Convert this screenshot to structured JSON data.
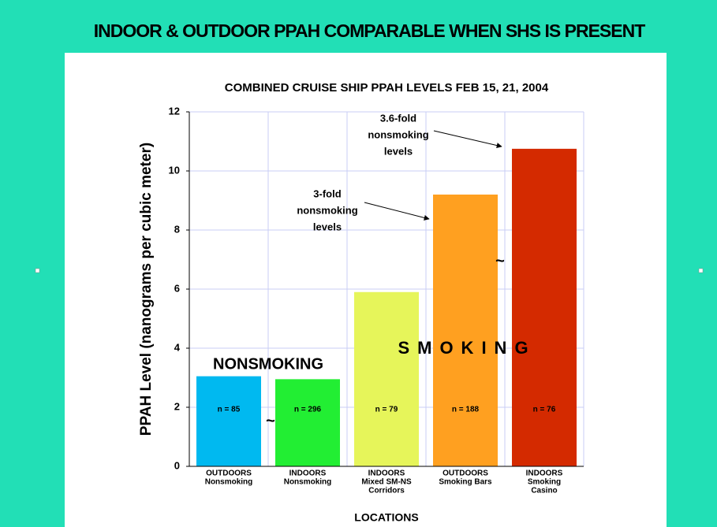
{
  "slide_title": "INDOOR & OUTDOOR PPAH COMPARABLE WHEN SHS IS PRESENT",
  "chart_data": {
    "type": "bar",
    "title": "COMBINED CRUISE SHIP PPAH LEVELS FEB 15, 21, 2004",
    "x_label": "LOCATIONS",
    "y_label": "PPAH Level (nanograms per cubic meter)",
    "categories": [
      [
        "OUTDOORS",
        "Nonsmoking"
      ],
      [
        "INDOORS",
        "Nonsmoking"
      ],
      [
        "INDOORS",
        "Mixed SM-NS",
        "Corridors"
      ],
      [
        "OUTDOORS",
        "Smoking Bars"
      ],
      [
        "INDOORS",
        "Smoking",
        "Casino"
      ]
    ],
    "values": [
      3.05,
      2.95,
      5.9,
      9.2,
      10.75
    ],
    "colors": [
      "#00b9f0",
      "#22ee33",
      "#e6f55a",
      "#ffa020",
      "#d42a00"
    ],
    "n_labels": [
      "n = 85",
      "n = 296",
      "n = 79",
      "n = 188",
      "n = 76"
    ],
    "ylim": [
      0,
      12
    ],
    "yticks": [
      0,
      2,
      4,
      6,
      8,
      10,
      12
    ],
    "grid": true,
    "annotations": [
      "NONSMOKING",
      "SMOKING",
      "~",
      "~"
    ],
    "callouts": [
      [
        "3-fold",
        "nonsmoking",
        "levels"
      ],
      [
        "3.6-fold",
        "nonsmoking",
        "levels"
      ]
    ]
  }
}
